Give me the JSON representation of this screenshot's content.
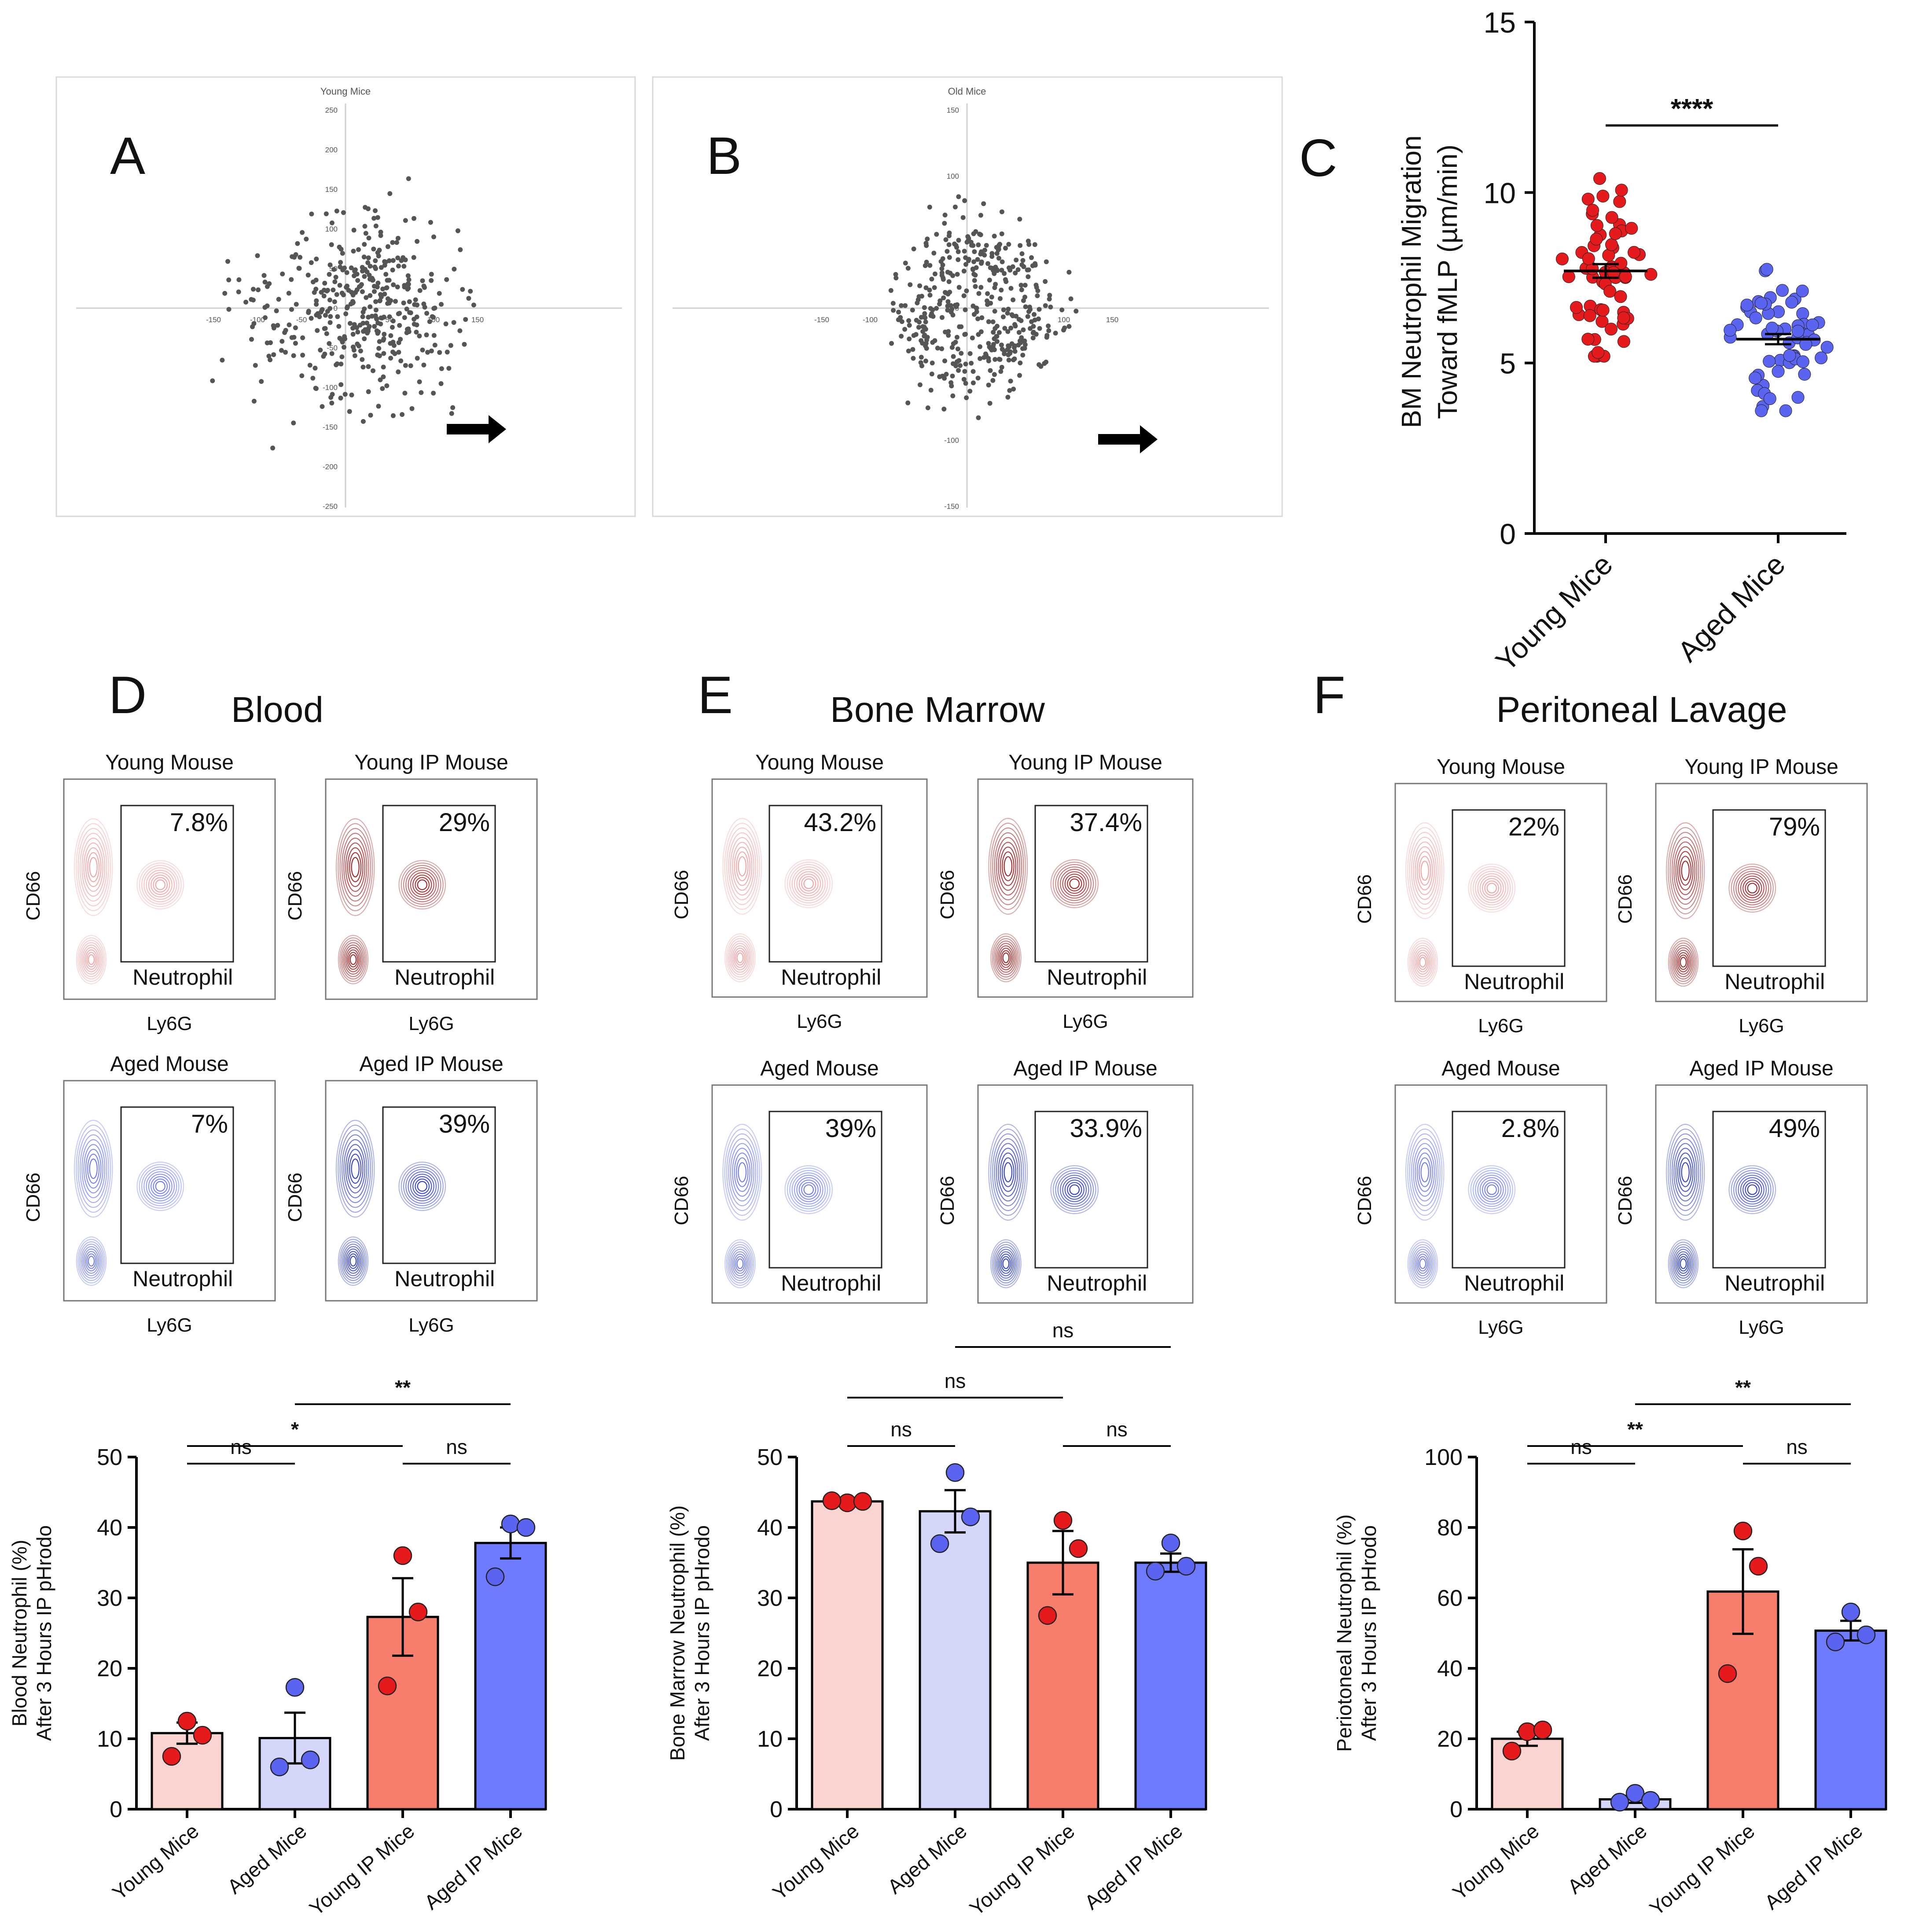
{
  "colors": {
    "young_dot": "#e41a1c",
    "aged_dot": "#5b64f0",
    "young_light_bar": "#f9d4d0",
    "aged_light_bar": "#d4d6fa",
    "young_ip_bar": "#f77d6c",
    "aged_ip_bar": "#6f7bff",
    "young_contour": "#f19a9a",
    "young_ip_contour": "#9b1111",
    "aged_contour": "#5f6ef0",
    "aged_ip_contour": "#1d2ec2",
    "scatter_point": "#555555"
  },
  "panel_letters": [
    "A",
    "B",
    "C",
    "D",
    "E",
    "F"
  ],
  "chart_data": [
    {
      "id": "A",
      "type": "scatter",
      "title": "Young Mice",
      "xlim": [
        -150,
        150
      ],
      "ylim": [
        -250,
        250
      ],
      "x_ticks": [
        -150,
        -100,
        -50,
        50,
        100,
        150
      ],
      "y_ticks": [
        250,
        200,
        150,
        100,
        50,
        0,
        -50,
        -100,
        -150,
        -200,
        -250
      ],
      "n_points": 430,
      "arrow_direction": "right",
      "note": "cell tracks shifted toward +x"
    },
    {
      "id": "B",
      "type": "scatter",
      "title": "Old Mice",
      "xlim": [
        -150,
        150
      ],
      "ylim": [
        -150,
        150
      ],
      "x_ticks": [
        -150,
        -100,
        100,
        150
      ],
      "y_ticks": [
        150,
        100,
        0,
        -100,
        -150
      ],
      "n_points": 430,
      "arrow_direction": "right"
    },
    {
      "id": "C",
      "type": "scatter",
      "ylabel": "BM Neutrophil Migration\nToward fMLP (µm/min)",
      "categories": [
        "Young Mice",
        "Aged Mice"
      ],
      "ylim": [
        0,
        15
      ],
      "y_ticks": [
        0,
        5,
        10,
        15
      ],
      "series": [
        {
          "name": "Young Mice",
          "mean": 7.7,
          "sem": 0.2,
          "n": 60,
          "min": 5.2,
          "max": 11.0
        },
        {
          "name": "Aged Mice",
          "mean": 5.7,
          "sem": 0.15,
          "n": 60,
          "min": 3.6,
          "max": 7.9
        }
      ],
      "significance": "****"
    },
    {
      "id": "D",
      "type": "bar",
      "panel_title": "Blood",
      "ylabel": "Blood Neutrophil (%)\nAfter 3 Hours IP pHrodo",
      "categories": [
        "Young Mice",
        "Aged Mice",
        "Young IP Mice",
        "Aged IP Mice"
      ],
      "values": [
        10.8,
        10.1,
        27.3,
        37.8
      ],
      "errors": [
        1.5,
        3.6,
        5.5,
        2.2
      ],
      "points": [
        [
          12.5,
          10.5,
          7.5
        ],
        [
          17.3,
          7.0,
          6.0
        ],
        [
          36.0,
          28.0,
          17.5
        ],
        [
          40.5,
          40.0,
          33.0
        ]
      ],
      "ylim": [
        0,
        50
      ],
      "y_ticks": [
        0,
        10,
        20,
        30,
        40,
        50
      ],
      "comparisons": [
        {
          "from": 0,
          "to": 1,
          "label": "ns",
          "level": 0
        },
        {
          "from": 2,
          "to": 3,
          "label": "ns",
          "level": 0
        },
        {
          "from": 0,
          "to": 2,
          "label": "*",
          "level": 1
        },
        {
          "from": 1,
          "to": 3,
          "label": "**",
          "level": 2
        }
      ],
      "flow_plots": [
        {
          "title": "Young Mouse",
          "percent": "7.8%",
          "gate": "Neutrophil",
          "xlabel": "Ly6G",
          "ylabel": "CD66",
          "palette": "young"
        },
        {
          "title": "Young IP Mouse",
          "percent": "29%",
          "gate": "Neutrophil",
          "xlabel": "Ly6G",
          "ylabel": "CD66",
          "palette": "young_ip"
        },
        {
          "title": "Aged Mouse",
          "percent": "7%",
          "gate": "Neutrophil",
          "xlabel": "Ly6G",
          "ylabel": "CD66",
          "palette": "aged"
        },
        {
          "title": "Aged IP Mouse",
          "percent": "39%",
          "gate": "Neutrophil",
          "xlabel": "Ly6G",
          "ylabel": "CD66",
          "palette": "aged_ip"
        }
      ]
    },
    {
      "id": "E",
      "type": "bar",
      "panel_title": "Bone Marrow",
      "ylabel": "Bone Marrow Neutrophil (%)\nAfter 3 Hours IP pHrodo",
      "categories": [
        "Young Mice",
        "Aged Mice",
        "Young IP Mice",
        "Aged IP Mice"
      ],
      "values": [
        43.7,
        42.3,
        35.0,
        35.0
      ],
      "errors": [
        0.3,
        3.0,
        4.5,
        1.3
      ],
      "points": [
        [
          43.5,
          43.7,
          43.8
        ],
        [
          47.8,
          41.5,
          37.7
        ],
        [
          41.0,
          37.0,
          27.5
        ],
        [
          37.8,
          34.5,
          33.8
        ]
      ],
      "ylim": [
        0,
        50
      ],
      "y_ticks": [
        0,
        10,
        20,
        30,
        40,
        50
      ],
      "comparisons": [
        {
          "from": 0,
          "to": 1,
          "label": "ns",
          "level": 0
        },
        {
          "from": 2,
          "to": 3,
          "label": "ns",
          "level": 0
        },
        {
          "from": 0,
          "to": 2,
          "label": "ns",
          "level": 1
        },
        {
          "from": 1,
          "to": 3,
          "label": "ns",
          "level": 2
        }
      ],
      "flow_plots": [
        {
          "title": "Young Mouse",
          "percent": "43.2%",
          "gate": "Neutrophil",
          "xlabel": "Ly6G",
          "ylabel": "CD66",
          "palette": "young"
        },
        {
          "title": "Young IP Mouse",
          "percent": "37.4%",
          "gate": "Neutrophil",
          "xlabel": "Ly6G",
          "ylabel": "CD66",
          "palette": "young_ip"
        },
        {
          "title": "Aged Mouse",
          "percent": "39%",
          "gate": "Neutrophil",
          "xlabel": "",
          "ylabel": "CD66",
          "palette": "aged"
        },
        {
          "title": "Aged IP Mouse",
          "percent": "33.9%",
          "gate": "Neutrophil",
          "xlabel": "",
          "ylabel": "CD66",
          "palette": "aged_ip"
        }
      ]
    },
    {
      "id": "F",
      "type": "bar",
      "panel_title": "Peritoneal Lavage",
      "ylabel": "Periotoneal Neutrophil (%)\nAfter 3 Hours IP pHrodo",
      "categories": [
        "Young Mice",
        "Aged Mice",
        "Young IP Mice",
        "Aged IP Mice"
      ],
      "values": [
        20.0,
        2.8,
        61.8,
        50.7
      ],
      "errors": [
        2.0,
        1.0,
        12.0,
        2.8
      ],
      "points": [
        [
          22.0,
          22.5,
          16.5
        ],
        [
          4.5,
          2.5,
          2.0
        ],
        [
          79.0,
          69.0,
          38.5
        ],
        [
          56.0,
          49.5,
          47.5
        ]
      ],
      "ylim": [
        0,
        100
      ],
      "y_ticks": [
        0,
        20,
        40,
        60,
        80,
        100
      ],
      "comparisons": [
        {
          "from": 0,
          "to": 1,
          "label": "ns",
          "level": 0
        },
        {
          "from": 2,
          "to": 3,
          "label": "ns",
          "level": 0
        },
        {
          "from": 0,
          "to": 2,
          "label": "**",
          "level": 1
        },
        {
          "from": 1,
          "to": 3,
          "label": "**",
          "level": 2
        }
      ],
      "flow_plots": [
        {
          "title": "Young Mouse",
          "percent": "22%",
          "gate": "Neutrophil",
          "xlabel": "Ly6G",
          "ylabel": "CD66",
          "palette": "young"
        },
        {
          "title": "Young IP Mouse",
          "percent": "79%",
          "gate": "Neutrophil",
          "xlabel": "Ly6G",
          "ylabel": "CD66",
          "palette": "young_ip"
        },
        {
          "title": "Aged Mouse",
          "percent": "2.8%",
          "gate": "Neutrophil",
          "xlabel": "Ly6G",
          "ylabel": "CD66",
          "palette": "aged"
        },
        {
          "title": "Aged IP Mouse",
          "percent": "49%",
          "gate": "Neutrophil",
          "xlabel": "Ly6G",
          "ylabel": "CD66",
          "palette": "aged_ip"
        }
      ]
    }
  ]
}
